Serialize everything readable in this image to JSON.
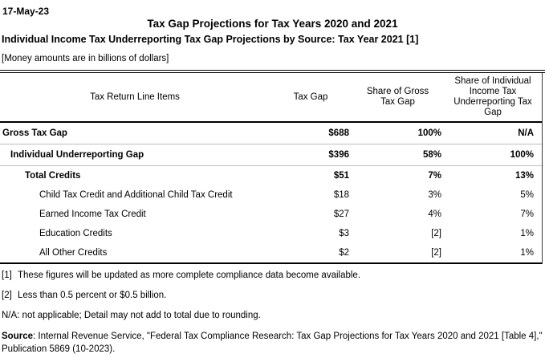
{
  "page": {
    "date": "17-May-23",
    "title": "Tax Gap Projections for Tax Years 2020 and 2021",
    "subtitle": "Individual Income Tax Underreporting Tax Gap Projections by Source: Tax Year 2021 [1]",
    "units_note": "[Money amounts are in billions of dollars]"
  },
  "table": {
    "columns": {
      "line_items": "Tax Return Line Items",
      "tax_gap": "Tax Gap",
      "share_gross": "Share of Gross Tax Gap",
      "share_underreporting": "Share of Individual Income Tax Underreporting Tax Gap"
    },
    "rows": [
      {
        "label": "Gross Tax Gap",
        "tax_gap": "$688",
        "share_gross": "100%",
        "share_underreporting": "N/A",
        "bold": true,
        "indent": 0,
        "separator_after": true
      },
      {
        "label": "Individual Underreporting Gap",
        "tax_gap": "$396",
        "share_gross": "58%",
        "share_underreporting": "100%",
        "bold": true,
        "indent": 1,
        "separator_after": true
      },
      {
        "label": "Total Credits",
        "tax_gap": "$51",
        "share_gross": "7%",
        "share_underreporting": "13%",
        "bold": true,
        "indent": 2,
        "separator_after": false
      },
      {
        "label": "Child Tax Credit and Additional Child Tax Credit",
        "tax_gap": "$18",
        "share_gross": "3%",
        "share_underreporting": "5%",
        "bold": false,
        "indent": 3,
        "separator_after": false
      },
      {
        "label": "Earned Income Tax Credit",
        "tax_gap": "$27",
        "share_gross": "4%",
        "share_underreporting": "7%",
        "bold": false,
        "indent": 3,
        "separator_after": false
      },
      {
        "label": "Education Credits",
        "tax_gap": "$3",
        "share_gross": "[2]",
        "share_underreporting": "1%",
        "bold": false,
        "indent": 3,
        "separator_after": false
      },
      {
        "label": "All Other Credits",
        "tax_gap": "$2",
        "share_gross": "[2]",
        "share_underreporting": "1%",
        "bold": false,
        "indent": 3,
        "separator_after": false
      }
    ]
  },
  "footnotes": [
    {
      "marker": "[1]",
      "text": "These figures will be updated as more complete compliance data become available."
    },
    {
      "marker": "[2]",
      "text": "Less than 0.5 percent or $0.5 billion."
    }
  ],
  "na_note": "N/A: not applicable; Detail may not add to total due to rounding.",
  "source": {
    "label": "Source",
    "text": ": Internal Revenue Service, \"Federal Tax Compliance Research: Tax Gap Projections for Tax Years 2020 and 2021 [Table 4],\" Publication 5869 (10-2023)."
  },
  "colors": {
    "text": "#000000",
    "row_separator": "#bfbfbf",
    "table_rule": "#000000"
  }
}
